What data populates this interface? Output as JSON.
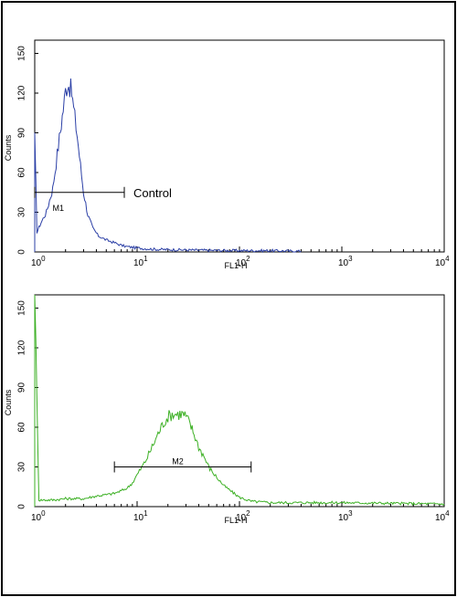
{
  "colors": {
    "panel1_trace": "#2b3fa6",
    "panel2_trace": "#3cb024",
    "axis": "#000000"
  },
  "chart_data": [
    {
      "type": "line",
      "title": "",
      "xlabel": "FL1-H",
      "ylabel": "Counts",
      "x_scale": "log",
      "xlim": [
        1,
        10000
      ],
      "ylim": [
        0,
        160
      ],
      "yticks": [
        "0",
        "30",
        "60",
        "90",
        "120",
        "150"
      ],
      "xticks": [
        {
          "base": "10",
          "exp": "0"
        },
        {
          "base": "10",
          "exp": "1"
        },
        {
          "base": "10",
          "exp": "2"
        },
        {
          "base": "10",
          "exp": "3"
        },
        {
          "base": "10",
          "exp": "4"
        }
      ],
      "grid": false,
      "series": [
        {
          "color": "#2b3fa6",
          "x": [
            1,
            1.05,
            1.15,
            1.3,
            1.5,
            1.7,
            1.9,
            2.0,
            2.1,
            2.2,
            2.3,
            2.4,
            2.6,
            2.8,
            3.0,
            3.3,
            3.7,
            4.2,
            5,
            6,
            7,
            8,
            10,
            12,
            15,
            20,
            30,
            50,
            100,
            200,
            400
          ],
          "y": [
            90,
            15,
            22,
            30,
            48,
            80,
            108,
            122,
            128,
            125,
            120,
            108,
            88,
            65,
            45,
            28,
            18,
            12,
            9,
            7,
            5,
            4,
            3,
            2.5,
            2,
            1.8,
            1.5,
            1.2,
            1,
            1,
            0.5
          ]
        }
      ],
      "marker": {
        "label": "M1",
        "x_start": 1,
        "x_end": 7.5,
        "y": 45,
        "annotation": "Control"
      }
    },
    {
      "type": "line",
      "title": "",
      "xlabel": "FL1-H",
      "ylabel": "Counts",
      "x_scale": "log",
      "xlim": [
        1,
        10000
      ],
      "ylim": [
        0,
        160
      ],
      "yticks": [
        "0",
        "30",
        "60",
        "90",
        "120",
        "150"
      ],
      "xticks": [
        {
          "base": "10",
          "exp": "0"
        },
        {
          "base": "10",
          "exp": "1"
        },
        {
          "base": "10",
          "exp": "2"
        },
        {
          "base": "10",
          "exp": "3"
        },
        {
          "base": "10",
          "exp": "4"
        }
      ],
      "grid": false,
      "series": [
        {
          "color": "#3cb024",
          "x": [
            1,
            1.1,
            1.5,
            2,
            3,
            4,
            5,
            6,
            7,
            8,
            9,
            10,
            12,
            14,
            16,
            18,
            20,
            22,
            25,
            28,
            30,
            33,
            36,
            40,
            45,
            50,
            60,
            70,
            85,
            100,
            130,
            200,
            400,
            1000,
            3000,
            10000
          ],
          "y": [
            160,
            5,
            5,
            6,
            6,
            8,
            9,
            10,
            12,
            14,
            18,
            24,
            34,
            45,
            55,
            63,
            68,
            70,
            70,
            70,
            68,
            62,
            55,
            45,
            38,
            30,
            22,
            16,
            11,
            7,
            4,
            3,
            3,
            3,
            2.5,
            2
          ]
        }
      ],
      "marker": {
        "label": "M2",
        "x_start": 6,
        "x_end": 130,
        "y": 30
      }
    }
  ]
}
